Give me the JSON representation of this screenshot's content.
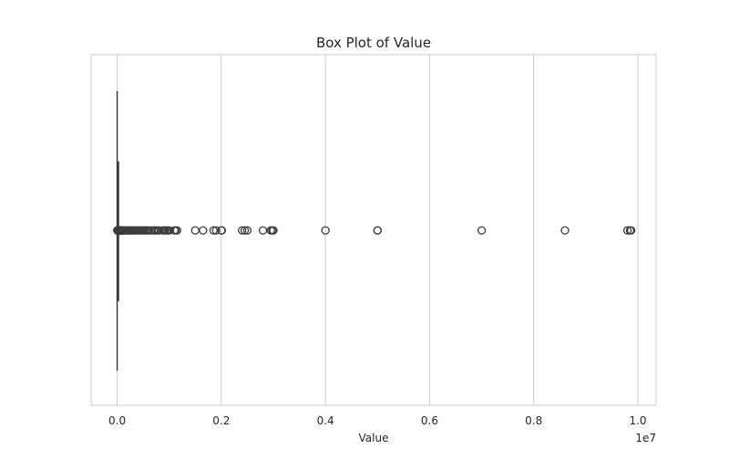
{
  "chart_data": {
    "type": "box",
    "title": "Box Plot of Value",
    "xlabel": "Value",
    "ylabel": "",
    "orientation": "horizontal",
    "x_scale_label": "1e7",
    "xlim": [
      -0.05,
      1.035
    ],
    "x_ticks": [
      0.0,
      0.2,
      0.4,
      0.6,
      0.8,
      1.0
    ],
    "x_tick_labels": [
      "0.0",
      "0.2",
      "0.4",
      "0.6",
      "0.8",
      "1.0"
    ],
    "grid": "vertical",
    "box": {
      "q1": 0.0005,
      "median": 0.001,
      "q3": 0.0015,
      "whisker_low": 0.0,
      "whisker_high": 0.003
    },
    "outliers": [
      0.004,
      0.006,
      0.008,
      0.01,
      0.012,
      0.014,
      0.016,
      0.018,
      0.02,
      0.022,
      0.025,
      0.028,
      0.03,
      0.033,
      0.036,
      0.04,
      0.044,
      0.048,
      0.052,
      0.056,
      0.06,
      0.065,
      0.07,
      0.075,
      0.08,
      0.085,
      0.09,
      0.095,
      0.1,
      0.11,
      0.12,
      0.13,
      0.14,
      0.15,
      0.16,
      0.175,
      0.19,
      0.2,
      0.21,
      0.22,
      0.23,
      0.24,
      0.25,
      0.27,
      0.29,
      0.3,
      0.32,
      0.34,
      0.36,
      0.38,
      0.4,
      0.42,
      0.44,
      0.46,
      0.48,
      0.5,
      0.52,
      0.55,
      0.58,
      0.6,
      0.65,
      0.7,
      0.72,
      0.75,
      0.78,
      0.8,
      0.88,
      0.9,
      0.92,
      0.95,
      0.98,
      1.0,
      1.1,
      1.12,
      1.15,
      1.5,
      1.65,
      1.85,
      1.9,
      2.0,
      2.01,
      2.4,
      2.45,
      2.5,
      2.8,
      2.95,
      2.98,
      3.0,
      4.0,
      5.0,
      5.0,
      7.0,
      8.6,
      9.8,
      9.85,
      9.87
    ],
    "outlier_scale": 1000000
  }
}
